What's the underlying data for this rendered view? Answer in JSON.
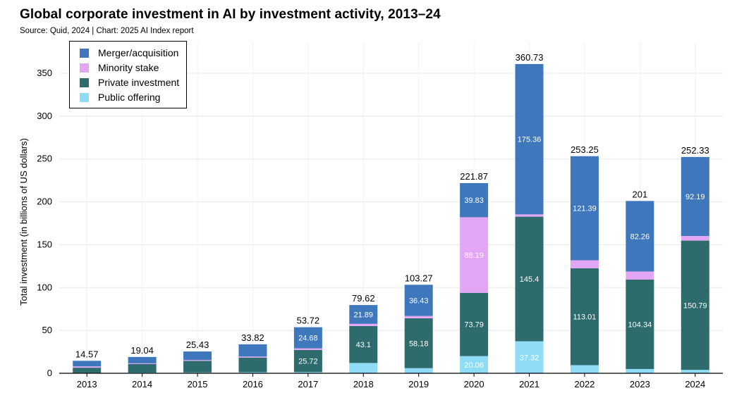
{
  "title": "Global corporate investment in AI by investment activity, 2013–24",
  "source": "Source: Quid, 2024 | Chart: 2025 AI Index report",
  "chart_data": {
    "type": "bar",
    "stacked": true,
    "ylabel": "Total investment (in billions of US dollars)",
    "xlabel": "",
    "ylim": [
      0,
      360
    ],
    "yticks": [
      0,
      50,
      100,
      150,
      200,
      250,
      300,
      350
    ],
    "grid": true,
    "legend_position": "top-left",
    "categories": [
      "2013",
      "2014",
      "2015",
      "2016",
      "2017",
      "2018",
      "2019",
      "2020",
      "2021",
      "2022",
      "2023",
      "2024"
    ],
    "series": [
      {
        "name": "Public offering",
        "color": "#8fdcf7",
        "values": [
          0.5,
          0.8,
          1.0,
          1.3,
          1.5,
          12.0,
          6.0,
          20.06,
          37.32,
          9.5,
          5.0,
          4.0
        ]
      },
      {
        "name": "Private investment",
        "color": "#2e6b6c",
        "values": [
          6.0,
          10.0,
          13.5,
          17.0,
          25.72,
          43.1,
          58.18,
          73.79,
          145.4,
          113.01,
          104.34,
          150.79
        ]
      },
      {
        "name": "Minority stake",
        "color": "#e3a6f5",
        "values": [
          1.5,
          0.8,
          1.0,
          1.2,
          1.82,
          2.63,
          2.66,
          88.19,
          2.65,
          9.35,
          9.4,
          5.35
        ]
      },
      {
        "name": "Merger/acquisition",
        "color": "#3f77bd",
        "values": [
          6.57,
          7.44,
          9.93,
          14.32,
          24.68,
          21.89,
          36.43,
          39.83,
          175.36,
          121.39,
          82.26,
          92.19
        ]
      }
    ],
    "segment_labels": {
      "Merger/acquisition": [
        "",
        "",
        "",
        "",
        "24.68",
        "21.89",
        "36.43",
        "39.83",
        "175.36",
        "121.39",
        "82.26",
        "92.19"
      ],
      "Minority stake": [
        "",
        "",
        "",
        "",
        "",
        "",
        "",
        "88.19",
        "",
        "",
        "",
        ""
      ],
      "Private investment": [
        "",
        "",
        "",
        "",
        "25.72",
        "43.1",
        "58.18",
        "73.79",
        "145.4",
        "113.01",
        "104.34",
        "150.79"
      ],
      "Public offering": [
        "",
        "",
        "",
        "",
        "",
        "",
        "",
        "20.06",
        "37.32",
        "",
        "",
        ""
      ]
    },
    "totals": [
      "14.57",
      "19.04",
      "25.43",
      "33.82",
      "53.72",
      "79.62",
      "103.27",
      "221.87",
      "360.73",
      "253.25",
      "201",
      "252.33"
    ],
    "legend_order": [
      "Merger/acquisition",
      "Minority stake",
      "Private investment",
      "Public offering"
    ]
  }
}
